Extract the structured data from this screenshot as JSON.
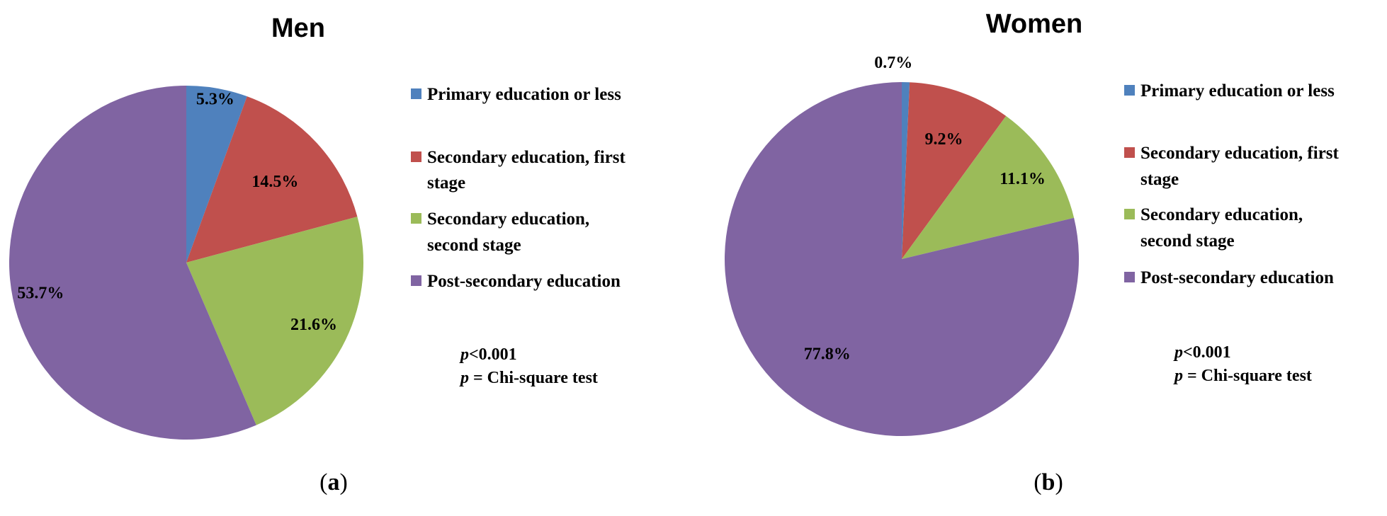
{
  "chart_data": [
    {
      "type": "pie",
      "title": "Men",
      "panel": "a",
      "categories": [
        "Primary education or less",
        "Secondary education, first stage",
        "Secondary education, second stage",
        "Post-secondary education"
      ],
      "values": [
        5.3,
        14.5,
        21.6,
        53.7
      ],
      "labels": [
        "5.3%",
        "14.5%",
        "21.6%",
        "53.7%"
      ],
      "colors": [
        "#4f81bd",
        "#c0504d",
        "#9bbb59",
        "#8064a2"
      ],
      "legend_placement": "right",
      "annotation": {
        "line1": "<0.001",
        "line2": " = Chi-square test",
        "symbol": "p"
      }
    },
    {
      "type": "pie",
      "title": "Women",
      "panel": "b",
      "categories": [
        "Primary education or less",
        "Secondary education, first stage",
        "Secondary education, second stage",
        "Post-secondary education"
      ],
      "values": [
        0.7,
        9.2,
        11.1,
        77.8
      ],
      "labels": [
        "0.7%",
        "9.2%",
        "11.1%",
        "77.8%"
      ],
      "colors": [
        "#4f81bd",
        "#c0504d",
        "#9bbb59",
        "#8064a2"
      ],
      "legend_placement": "right",
      "annotation": {
        "line1": "<0.001",
        "line2": " = Chi-square test",
        "symbol": "p"
      }
    }
  ]
}
